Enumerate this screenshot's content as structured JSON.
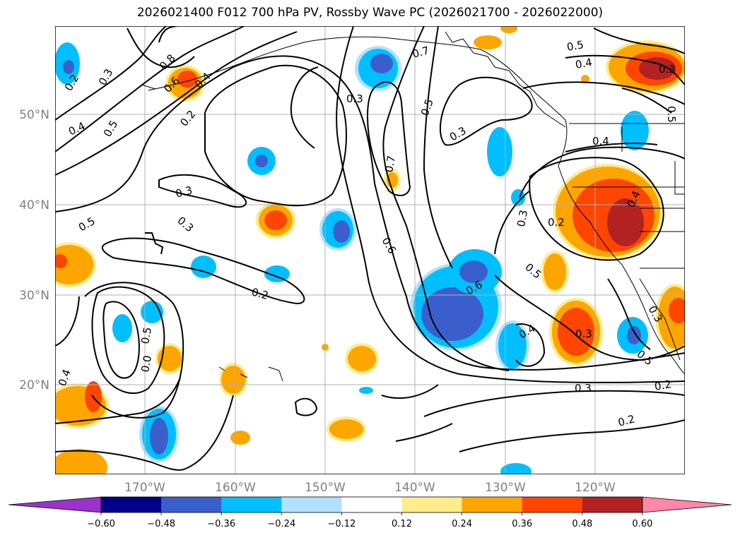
{
  "title": "2026021400 F012 700 hPa PV, Rossby Wave PC (2026021700 - 2026022000)",
  "lat_labels": [
    "50°N",
    "40°N",
    "30°N",
    "20°N"
  ],
  "lon_labels": [
    "170°W",
    "160°W",
    "150°W",
    "140°W",
    "130°W",
    "120°W"
  ],
  "contour_labels": [
    "0.2",
    "0.3",
    "0.4",
    "0.8",
    "0.6",
    "0.4",
    "0.2",
    "0.5",
    "0.5",
    "0.3",
    "0.3",
    "0.2",
    "0.3",
    "0.6",
    "0.7",
    "0.7",
    "0.5",
    "0.3",
    "0.6",
    "0.5",
    "0.4",
    "0.5",
    "0.4",
    "0.3",
    "0.3",
    "0.4",
    "0.2",
    "0.3",
    "0.4",
    "0.3",
    "0.5",
    "0.5",
    "0.3",
    "0.2",
    "0.2",
    "0.5",
    "0.0",
    "0.4"
  ],
  "colorbar": {
    "ticks": [
      "−0.60",
      "−0.48",
      "−0.36",
      "−0.24",
      "−0.12",
      "0.12",
      "0.24",
      "0.36",
      "0.48",
      "0.60"
    ],
    "colors": [
      "#9933cc",
      "#00008b",
      "#3a5fcd",
      "#00bfff",
      "#b0e2ff",
      "#ffffff",
      "#ffec8b",
      "#ffa500",
      "#ff4500",
      "#b22222",
      "#ff88aa"
    ]
  }
}
